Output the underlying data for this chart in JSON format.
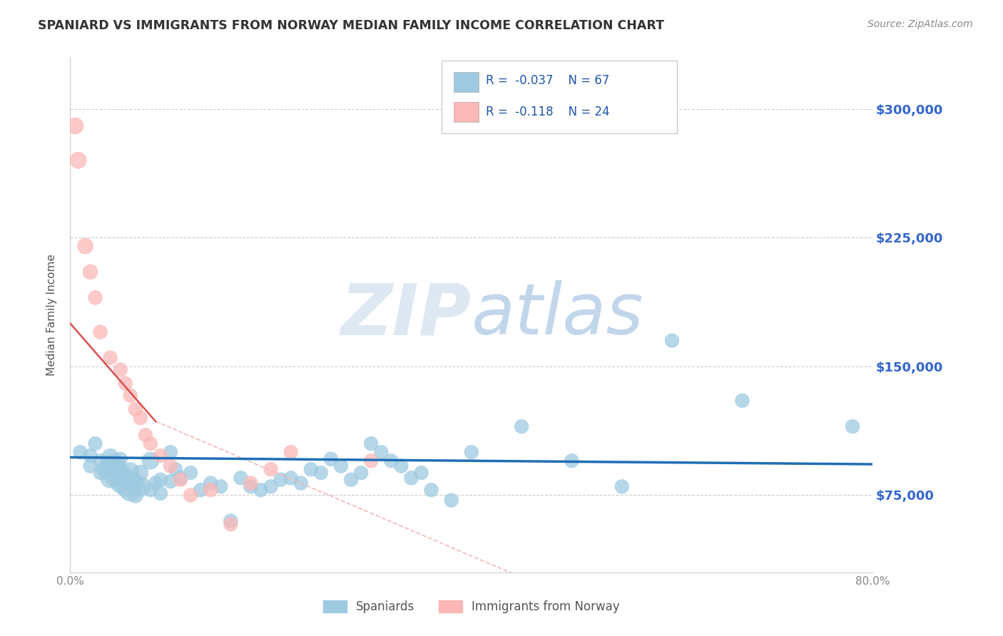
{
  "title": "SPANIARD VS IMMIGRANTS FROM NORWAY MEDIAN FAMILY INCOME CORRELATION CHART",
  "source": "Source: ZipAtlas.com",
  "ylabel": "Median Family Income",
  "watermark": "ZIPatlas",
  "legend_blue_R": "-0.037",
  "legend_blue_N": "67",
  "legend_pink_R": "-0.118",
  "legend_pink_N": "24",
  "ytick_labels": [
    "$75,000",
    "$150,000",
    "$225,000",
    "$300,000"
  ],
  "ytick_values": [
    75000,
    150000,
    225000,
    300000
  ],
  "xlim": [
    0.0,
    0.8
  ],
  "ylim": [
    30000,
    330000
  ],
  "blue_color": "#9ecae1",
  "pink_color": "#fcb7b7",
  "blue_line_color": "#1f6eb5",
  "pink_line_color": "#d94f4f",
  "pink_trendline_color": "#f4b8b8",
  "blue_scatter_x": [
    0.01,
    0.02,
    0.02,
    0.025,
    0.03,
    0.03,
    0.035,
    0.04,
    0.04,
    0.04,
    0.045,
    0.045,
    0.05,
    0.05,
    0.05,
    0.05,
    0.055,
    0.055,
    0.06,
    0.06,
    0.06,
    0.065,
    0.065,
    0.07,
    0.07,
    0.08,
    0.08,
    0.085,
    0.09,
    0.09,
    0.1,
    0.1,
    0.105,
    0.11,
    0.12,
    0.13,
    0.14,
    0.15,
    0.16,
    0.17,
    0.18,
    0.19,
    0.2,
    0.21,
    0.22,
    0.23,
    0.24,
    0.25,
    0.26,
    0.27,
    0.28,
    0.29,
    0.3,
    0.31,
    0.32,
    0.33,
    0.34,
    0.35,
    0.36,
    0.38,
    0.4,
    0.45,
    0.5,
    0.55,
    0.6,
    0.67,
    0.78
  ],
  "blue_scatter_y": [
    100000,
    92000,
    98000,
    105000,
    88000,
    95000,
    90000,
    85000,
    92000,
    97000,
    88000,
    93000,
    82000,
    85000,
    90000,
    96000,
    80000,
    86000,
    78000,
    83000,
    89000,
    75000,
    82000,
    80000,
    88000,
    95000,
    78000,
    82000,
    76000,
    84000,
    100000,
    83000,
    90000,
    85000,
    88000,
    78000,
    82000,
    80000,
    60000,
    85000,
    80000,
    78000,
    80000,
    84000,
    85000,
    82000,
    90000,
    88000,
    96000,
    92000,
    84000,
    88000,
    105000,
    100000,
    95000,
    92000,
    85000,
    88000,
    78000,
    72000,
    100000,
    115000,
    95000,
    80000,
    165000,
    130000,
    115000
  ],
  "blue_scatter_size": [
    40,
    40,
    40,
    40,
    40,
    40,
    60,
    80,
    100,
    60,
    130,
    80,
    80,
    60,
    50,
    40,
    80,
    60,
    100,
    80,
    60,
    50,
    70,
    80,
    50,
    60,
    40,
    40,
    40,
    40,
    40,
    40,
    40,
    40,
    40,
    40,
    40,
    40,
    40,
    40,
    40,
    40,
    40,
    40,
    40,
    40,
    40,
    40,
    40,
    40,
    40,
    40,
    40,
    40,
    40,
    40,
    40,
    40,
    40,
    40,
    40,
    40,
    40,
    40,
    40,
    40,
    40
  ],
  "pink_scatter_x": [
    0.005,
    0.008,
    0.015,
    0.02,
    0.025,
    0.03,
    0.04,
    0.05,
    0.055,
    0.06,
    0.065,
    0.07,
    0.075,
    0.08,
    0.09,
    0.1,
    0.11,
    0.12,
    0.14,
    0.16,
    0.18,
    0.2,
    0.22,
    0.3
  ],
  "pink_scatter_y": [
    290000,
    270000,
    220000,
    205000,
    190000,
    170000,
    155000,
    148000,
    140000,
    133000,
    125000,
    120000,
    110000,
    105000,
    98000,
    92000,
    84000,
    75000,
    78000,
    58000,
    82000,
    90000,
    100000,
    95000
  ],
  "pink_scatter_size": [
    55,
    55,
    50,
    45,
    40,
    40,
    40,
    40,
    40,
    40,
    40,
    40,
    40,
    40,
    40,
    40,
    40,
    40,
    40,
    40,
    40,
    40,
    40,
    40
  ]
}
